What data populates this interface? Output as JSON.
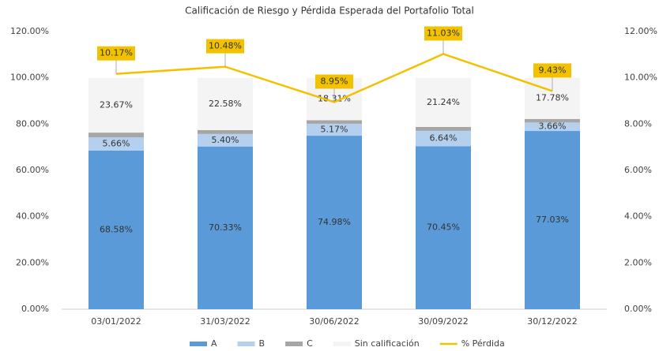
{
  "chart_data": {
    "type": "bar",
    "stacked": true,
    "title": "Calificación de Riesgo y Pérdida Esperada del Portafolio Total",
    "categories": [
      "03/01/2022",
      "31/03/2022",
      "30/06/2022",
      "30/09/2022",
      "30/12/2022"
    ],
    "series": [
      {
        "name": "A",
        "color": "#5a9ad8",
        "values": [
          68.58,
          70.33,
          74.98,
          70.45,
          77.03
        ],
        "value_labels": [
          "68.58%",
          "70.33%",
          "74.98%",
          "70.45%",
          "77.03%"
        ]
      },
      {
        "name": "B",
        "color": "#b4d0ee",
        "values": [
          5.66,
          5.4,
          5.17,
          6.64,
          3.66
        ],
        "value_labels": [
          "5.66%",
          "5.40%",
          "5.17%",
          "6.64%",
          "3.66%"
        ]
      },
      {
        "name": "C",
        "color": "#a6a6a6",
        "values": [
          2.09,
          1.69,
          1.54,
          1.67,
          1.53
        ]
      },
      {
        "name": "Sin calificación",
        "color": "#f4f4f4",
        "values": [
          23.67,
          22.58,
          18.31,
          21.24,
          17.78
        ],
        "value_labels": [
          "23.67%",
          "22.58%",
          "18.31%",
          "21.24%",
          "17.78%"
        ]
      },
      {
        "name": "% Pérdida",
        "type": "line",
        "axis": "y2",
        "color": "#f2c200",
        "values": [
          10.17,
          10.48,
          8.95,
          11.03,
          9.43
        ],
        "value_labels": [
          "10.17%",
          "10.48%",
          "8.95%",
          "11.03%",
          "9.43%"
        ]
      }
    ],
    "ylim": [
      0,
      120
    ],
    "yticks": [
      {
        "value": 0,
        "label": "0.00%"
      },
      {
        "value": 20,
        "label": "20.00%"
      },
      {
        "value": 40,
        "label": "40.00%"
      },
      {
        "value": 60,
        "label": "60.00%"
      },
      {
        "value": 80,
        "label": "80.00%"
      },
      {
        "value": 100,
        "label": "100.00%"
      },
      {
        "value": 120,
        "label": "120.00%"
      }
    ],
    "y2lim": [
      0,
      12
    ],
    "y2ticks": [
      {
        "value": 0,
        "label": "0.00%"
      },
      {
        "value": 2,
        "label": "2.00%"
      },
      {
        "value": 4,
        "label": "4.00%"
      },
      {
        "value": 6,
        "label": "6.00%"
      },
      {
        "value": 8,
        "label": "8.00%"
      },
      {
        "value": 10,
        "label": "10.00%"
      },
      {
        "value": 12,
        "label": "12.00%"
      }
    ],
    "legend": "bottom"
  }
}
